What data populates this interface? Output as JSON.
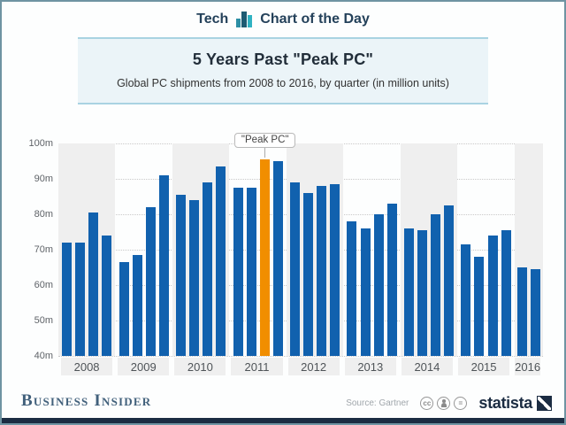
{
  "header": {
    "section": "Tech",
    "title": "Chart of the Day"
  },
  "title_block": {
    "title": "5 Years Past \"Peak PC\"",
    "subtitle": "Global PC shipments from 2008 to 2016, by quarter (in million units)"
  },
  "chart_data": {
    "type": "bar",
    "title": "5 Years Past \"Peak PC\"",
    "subtitle": "Global PC shipments from 2008 to 2016, by quarter (in million units)",
    "unit": "million units",
    "ylim": [
      40,
      100
    ],
    "yticks": [
      "100m",
      "90m",
      "80m",
      "70m",
      "60m",
      "50m",
      "40m"
    ],
    "grid": "dotted horizontal",
    "bar_color": "#1161ae",
    "highlight_color": "#f18e00",
    "stripe_color": "#efefef",
    "years": [
      {
        "year": "2008",
        "values": [
          72,
          72,
          80.5,
          74
        ]
      },
      {
        "year": "2009",
        "values": [
          66.5,
          68.5,
          82,
          91
        ]
      },
      {
        "year": "2010",
        "values": [
          85.5,
          84,
          89,
          93.5
        ]
      },
      {
        "year": "2011",
        "values": [
          87.5,
          87.5,
          95.5,
          95
        ]
      },
      {
        "year": "2012",
        "values": [
          89,
          86,
          88,
          88.5
        ]
      },
      {
        "year": "2013",
        "values": [
          78,
          76,
          80,
          83
        ]
      },
      {
        "year": "2014",
        "values": [
          76,
          75.5,
          80,
          82.5
        ]
      },
      {
        "year": "2015",
        "values": [
          71.5,
          68,
          74,
          75.5
        ]
      },
      {
        "year": "2016",
        "values": [
          65,
          64.5
        ]
      }
    ],
    "highlight": {
      "year": "2011",
      "quarter_index": 2,
      "label": "\"Peak PC\""
    }
  },
  "annotation": {
    "label": "\"Peak PC\""
  },
  "footer": {
    "brand": "Business Insider",
    "source": "Source: Gartner",
    "license_icons": [
      "cc-icon",
      "by-person-icon",
      "nd-equals-icon"
    ],
    "logo_text": "statista"
  }
}
